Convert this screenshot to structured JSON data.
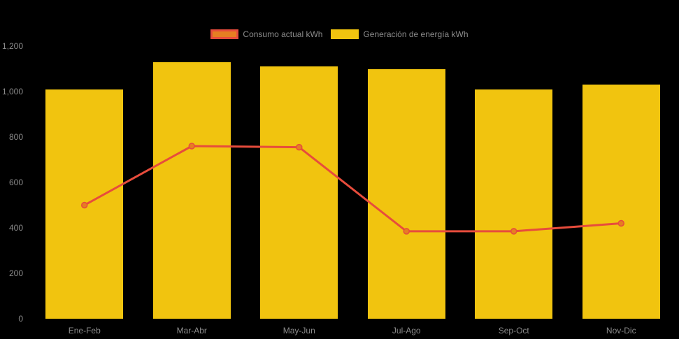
{
  "chart_data": {
    "type": "bar",
    "title": "",
    "categories": [
      "Ene-Feb",
      "Mar-Abr",
      "May-Jun",
      "Jul-Ago",
      "Sep-Oct",
      "Nov-Dic"
    ],
    "series": [
      {
        "name": "Consumo actual kWh",
        "type": "line",
        "values": [
          500,
          760,
          755,
          385,
          385,
          420
        ],
        "line_color": "#e74c3c",
        "point_fill": "#e67e22",
        "point_stroke": "#e74c3c"
      },
      {
        "name": "Generación de energía kWh",
        "type": "bar",
        "values": [
          1010,
          1130,
          1110,
          1100,
          1010,
          1030
        ],
        "bar_color": "#f1c40f"
      }
    ],
    "xlabel": "",
    "ylabel": "",
    "ylim": [
      0,
      1200
    ],
    "yticks": [
      {
        "value": 1200,
        "label": "1,200"
      },
      {
        "value": 1000,
        "label": "1,000"
      },
      {
        "value": 800,
        "label": "800"
      },
      {
        "value": 600,
        "label": "600"
      },
      {
        "value": 400,
        "label": "400"
      },
      {
        "value": 200,
        "label": "200"
      },
      {
        "value": 0,
        "label": "0"
      }
    ],
    "grid": "off",
    "legend_position": "top",
    "background_color": "#000000",
    "axis_text_color": "#8c8c8c"
  },
  "legend": {
    "items": [
      {
        "label": "Consumo actual kWh",
        "swatch_fill": "#e67e22",
        "swatch_border": "#e74c3c"
      },
      {
        "label": "Generación de energía kWh",
        "swatch_fill": "#f1c40f",
        "swatch_border": "#f1c40f"
      }
    ]
  }
}
